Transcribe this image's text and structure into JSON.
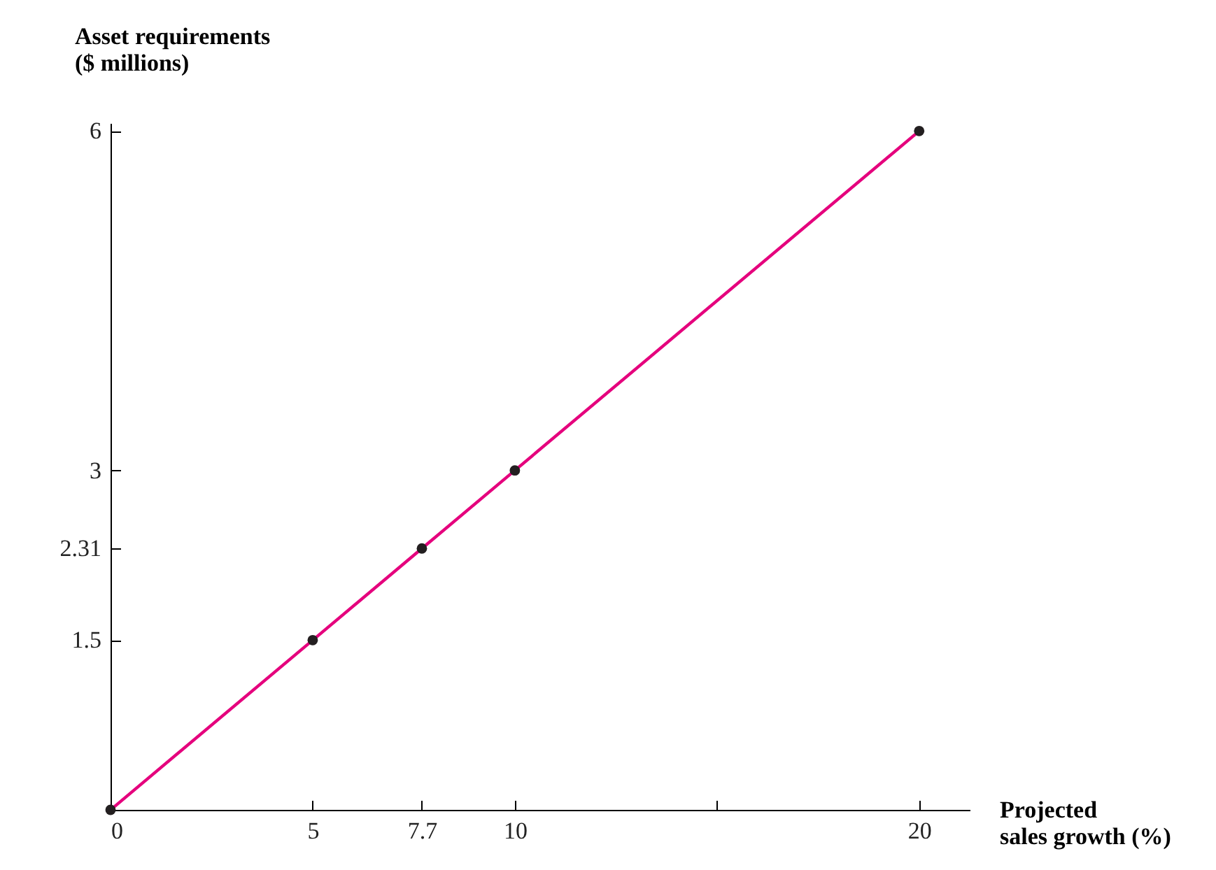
{
  "chart_data": {
    "type": "line",
    "xlabel": "Projected\nsales growth (%)",
    "ylabel": "Asset requirements\n($ millions)",
    "x": [
      0,
      5,
      7.7,
      10,
      20
    ],
    "series": [
      {
        "color": "#e5007d",
        "values": [
          0,
          1.5,
          2.31,
          3,
          6
        ]
      },
      {
        "type": "scatter",
        "color": "#231f20",
        "marker": "circle",
        "values": [
          0,
          1.5,
          2.31,
          3,
          6
        ]
      }
    ],
    "xlim": [
      0,
      21.25
    ],
    "ylim": [
      0,
      6.07
    ],
    "xticks": [
      0,
      5,
      7.7,
      10,
      {
        "value": 15,
        "label": null
      },
      20
    ],
    "yticks": [
      1.5,
      2.31,
      3,
      6
    ]
  }
}
